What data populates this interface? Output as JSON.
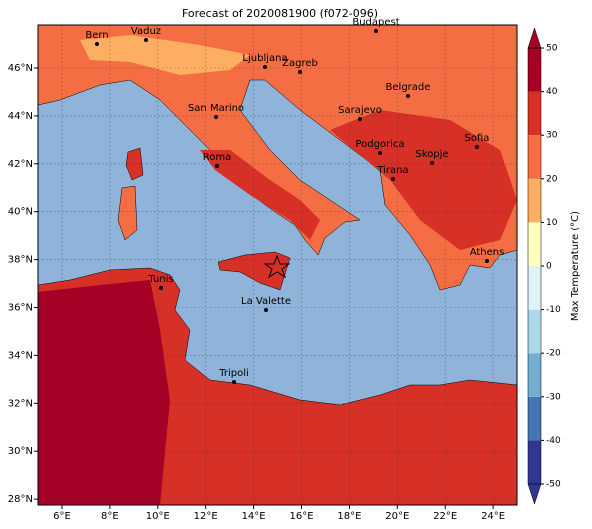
{
  "title": "Forecast of 2020081900 (f072-096)",
  "lon_ticks": [
    "6°E",
    "8°E",
    "10°E",
    "12°E",
    "14°E",
    "16°E",
    "18°E",
    "20°E",
    "22°E",
    "24°E"
  ],
  "lat_ticks": [
    "46°N",
    "44°N",
    "42°N",
    "40°N",
    "38°N",
    "36°N",
    "34°N",
    "32°N",
    "30°N",
    "28°N"
  ],
  "cities": [
    "Bern",
    "Vaduz",
    "Budapest",
    "Ljubljana",
    "Zagreb",
    "Belgrade",
    "San Marino",
    "Sarajevo",
    "Sofia",
    "Roma",
    "Podgorica",
    "Skopje",
    "Tirana",
    "Athens",
    "Tunis",
    "La Valette",
    "Tripoli"
  ],
  "colorbar": {
    "label": "Max Temperature (°C)",
    "clim": [
      -50,
      50
    ],
    "ticks": [
      50,
      40,
      30,
      20,
      10,
      0,
      -10,
      -20,
      -30,
      -40,
      -50
    ],
    "colors": [
      "#313695",
      "#4575b4",
      "#74add1",
      "#abd9e9",
      "#e0f3f8",
      "#ffffbf",
      "#fdae61",
      "#f46d43",
      "#d73027",
      "#a50026"
    ]
  }
}
